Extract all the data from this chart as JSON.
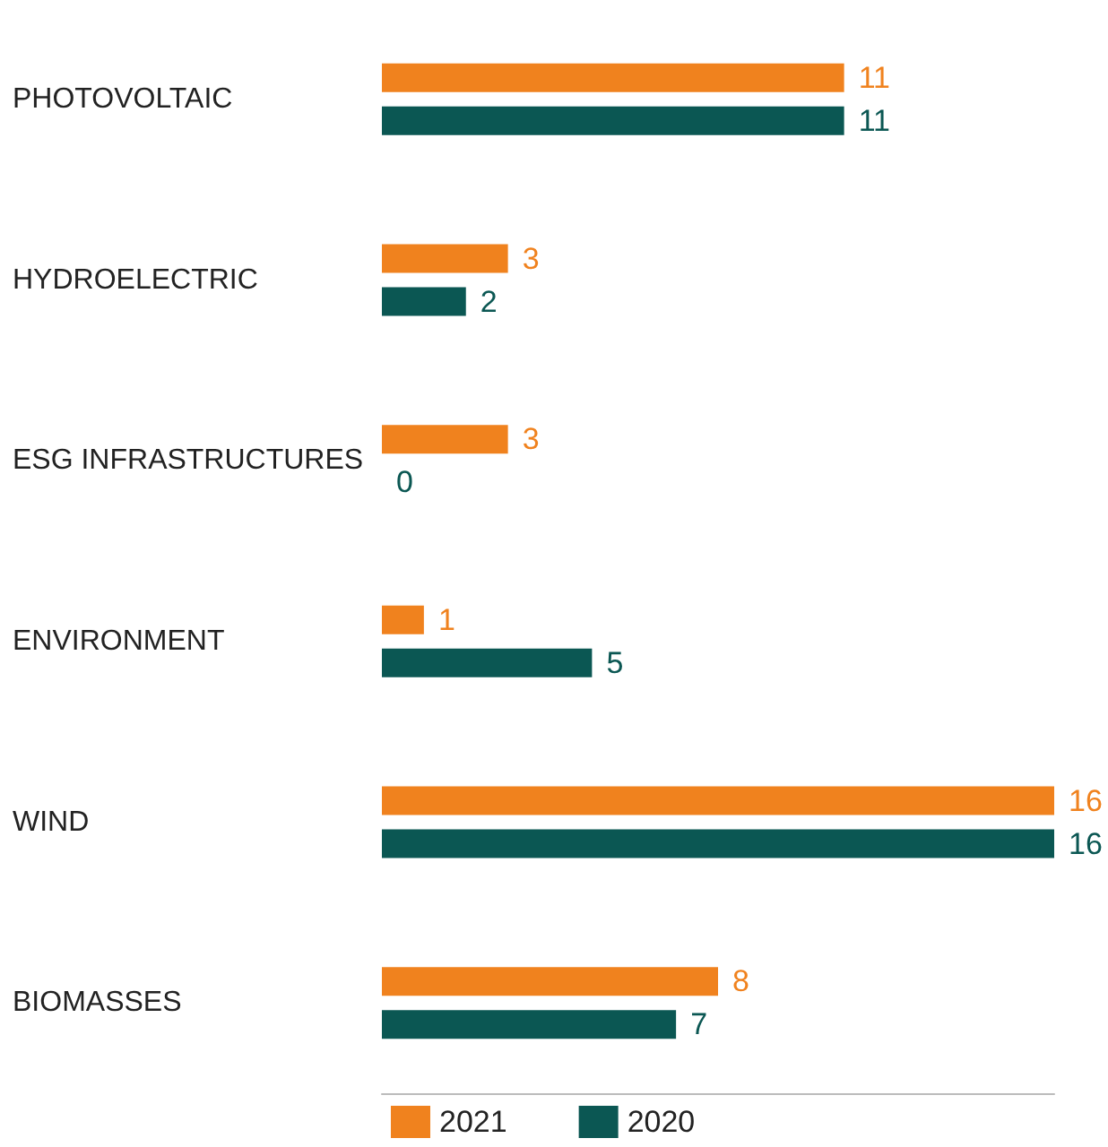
{
  "chart_data": {
    "type": "bar",
    "orientation": "horizontal",
    "categories": [
      "PHOTOVOLTAIC",
      "HYDROELECTRIC",
      "ESG INFRASTRUCTURES",
      "ENVIRONMENT",
      "WIND",
      "BIOMASSES"
    ],
    "series": [
      {
        "name": "2021",
        "color": "#f0821e",
        "values": [
          11,
          3,
          3,
          1,
          16,
          8
        ]
      },
      {
        "name": "2020",
        "color": "#0b5753",
        "values": [
          11,
          2,
          0,
          5,
          16,
          7
        ]
      }
    ],
    "data_labels": true,
    "legend": "bottom",
    "grid": false,
    "tick_labels": "y"
  }
}
